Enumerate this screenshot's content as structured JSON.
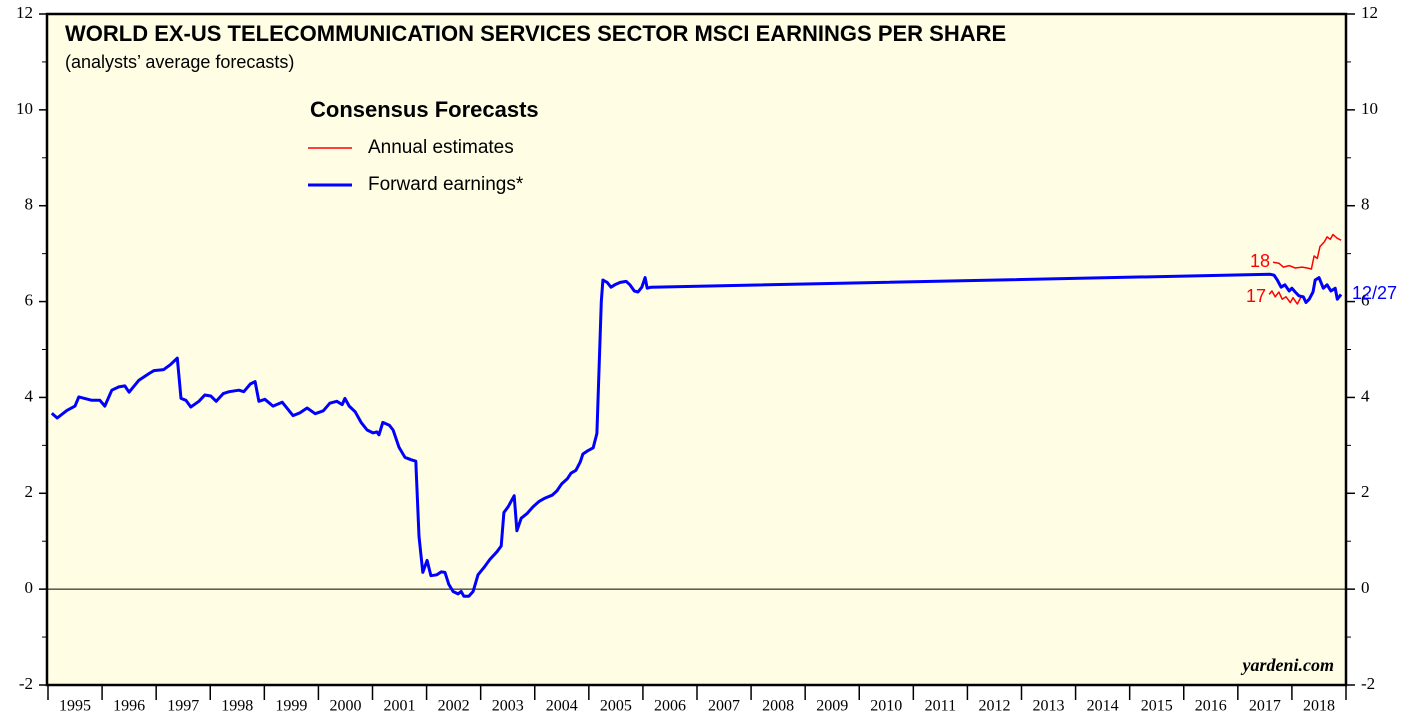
{
  "chart_data": {
    "type": "line",
    "title": "WORLD EX-US TELECOMMUNICATION SERVICES SECTOR MSCI EARNINGS PER SHARE",
    "subtitle": "(analysts’ average forecasts)",
    "legend_title": "Consensus Forecasts",
    "watermark": "yardeni.com",
    "categories": [
      "1995",
      "1996",
      "1997",
      "1998",
      "1999",
      "2000",
      "2001",
      "2002",
      "2003",
      "2004",
      "2005",
      "2006",
      "2007",
      "2008",
      "2009",
      "2010",
      "2011",
      "2012",
      "2013",
      "2014",
      "2015",
      "2016",
      "2017",
      "2018"
    ],
    "xlim": [
      1995,
      2019
    ],
    "xticks": [
      1995,
      1996,
      1997,
      1998,
      1999,
      2000,
      2001,
      2002,
      2003,
      2004,
      2005,
      2006,
      2007,
      2008,
      2009,
      2010,
      2011,
      2012,
      2013,
      2014,
      2015,
      2016,
      2017,
      2018,
      2019
    ],
    "ylim": [
      -2,
      12
    ],
    "yticks": [
      -2,
      0,
      2,
      4,
      6,
      8,
      10,
      12
    ],
    "yticks_minor": [
      -1,
      1,
      3,
      5,
      7,
      9,
      11
    ],
    "zero_line": true,
    "series": [
      {
        "name": "Annual estimates",
        "color": "#ff0000",
        "line_width": 1.5,
        "x": [
          2017.65,
          2017.76,
          2017.84,
          2017.95,
          2018.06,
          2018.19,
          2018.28,
          2018.36,
          2018.41,
          2018.47,
          2018.52,
          2018.6,
          2018.65,
          2018.71,
          2018.76,
          2018.84,
          2018.91,
          null,
          2017.58,
          2017.63,
          2017.69,
          2017.76,
          2017.82,
          2017.89,
          2017.97,
          2018.02,
          2018.1,
          2018.17
        ],
        "values": [
          6.82,
          6.8,
          6.72,
          6.75,
          6.7,
          6.72,
          6.7,
          6.68,
          6.95,
          6.9,
          7.15,
          7.25,
          7.35,
          7.3,
          7.4,
          7.32,
          7.28,
          null,
          6.15,
          6.22,
          6.1,
          6.2,
          6.05,
          6.1,
          5.98,
          6.08,
          5.95,
          6.1
        ]
      },
      {
        "name": "Forward earnings*",
        "color": "#0000ff",
        "line_width": 3,
        "x": [
          1995.07,
          1995.17,
          1995.35,
          1995.5,
          1995.57,
          1995.81,
          1995.96,
          1996.05,
          1996.18,
          1996.31,
          1996.42,
          1996.5,
          1996.68,
          1996.87,
          1996.96,
          1997.14,
          1997.26,
          1997.39,
          1997.46,
          1997.55,
          1997.64,
          1997.79,
          1997.9,
          1998.01,
          1998.11,
          1998.24,
          1998.35,
          1998.53,
          1998.62,
          1998.74,
          1998.83,
          1998.9,
          1999.01,
          1999.16,
          1999.33,
          1999.53,
          1999.66,
          1999.79,
          1999.94,
          2000.09,
          2000.21,
          2000.34,
          2000.44,
          2000.49,
          2000.57,
          2000.68,
          2000.79,
          2000.9,
          2001.01,
          2001.08,
          2001.12,
          2001.19,
          2001.31,
          2001.38,
          2001.49,
          2001.6,
          2001.71,
          2001.8,
          2001.86,
          2001.93,
          2002.01,
          2002.08,
          2002.19,
          2002.27,
          2002.34,
          2002.41,
          2002.49,
          2002.58,
          2002.64,
          2002.69,
          2002.78,
          2002.86,
          2002.95,
          2003.06,
          2003.17,
          2003.3,
          2003.38,
          2003.43,
          2003.51,
          2003.62,
          2003.67,
          2003.75,
          2003.86,
          2003.97,
          2004.08,
          2004.19,
          2004.32,
          2004.41,
          2004.5,
          2004.6,
          2004.67,
          2004.76,
          2004.84,
          2004.89,
          2004.97,
          2005.08,
          2005.15,
          2005.23,
          2005.26,
          2005.34,
          2005.41,
          2005.48,
          2005.58,
          2005.69,
          2005.76,
          2005.84,
          2005.91,
          2005.98,
          2006.04,
          2006.08,
          2006.15,
          2017.6,
          2017.67,
          2017.73,
          2017.8,
          2017.87,
          2017.95,
          2018.0,
          2018.06,
          2018.13,
          2018.21,
          2018.26,
          2018.32,
          2018.39,
          2018.43,
          2018.5,
          2018.58,
          2018.65,
          2018.72,
          2018.8,
          2018.84,
          2018.91
        ],
        "values": [
          3.67,
          3.57,
          3.73,
          3.82,
          4.01,
          3.94,
          3.94,
          3.82,
          4.15,
          4.22,
          4.24,
          4.11,
          4.36,
          4.5,
          4.56,
          4.58,
          4.68,
          4.82,
          3.98,
          3.94,
          3.8,
          3.92,
          4.05,
          4.03,
          3.92,
          4.08,
          4.12,
          4.15,
          4.12,
          4.28,
          4.33,
          3.92,
          3.96,
          3.82,
          3.9,
          3.62,
          3.68,
          3.78,
          3.66,
          3.72,
          3.88,
          3.92,
          3.85,
          3.98,
          3.82,
          3.7,
          3.48,
          3.32,
          3.26,
          3.28,
          3.22,
          3.48,
          3.42,
          3.32,
          2.96,
          2.75,
          2.7,
          2.67,
          1.1,
          0.35,
          0.6,
          0.28,
          0.3,
          0.36,
          0.35,
          0.1,
          -0.05,
          -0.1,
          -0.05,
          -0.15,
          -0.15,
          -0.05,
          0.3,
          0.45,
          0.62,
          0.78,
          0.9,
          1.6,
          1.72,
          1.95,
          1.22,
          1.48,
          1.58,
          1.72,
          1.83,
          1.9,
          1.96,
          2.05,
          2.2,
          2.3,
          2.42,
          2.48,
          2.65,
          2.82,
          2.88,
          2.95,
          3.25,
          6.0,
          6.45,
          6.4,
          6.3,
          6.35,
          6.4,
          6.42,
          6.35,
          6.22,
          6.2,
          6.3,
          6.5,
          6.28,
          6.3,
          6.57,
          6.55,
          6.45,
          6.3,
          6.35,
          6.22,
          6.28,
          6.2,
          6.12,
          6.1,
          5.98,
          6.05,
          6.2,
          6.45,
          6.5,
          6.28,
          6.35,
          6.22,
          6.28,
          6.05,
          6.15
        ]
      }
    ],
    "annotations": [
      {
        "text": "18",
        "color": "#ff0000"
      },
      {
        "text": "17",
        "color": "#ff0000"
      },
      {
        "text": "12/27",
        "color": "#0000ff"
      }
    ]
  }
}
